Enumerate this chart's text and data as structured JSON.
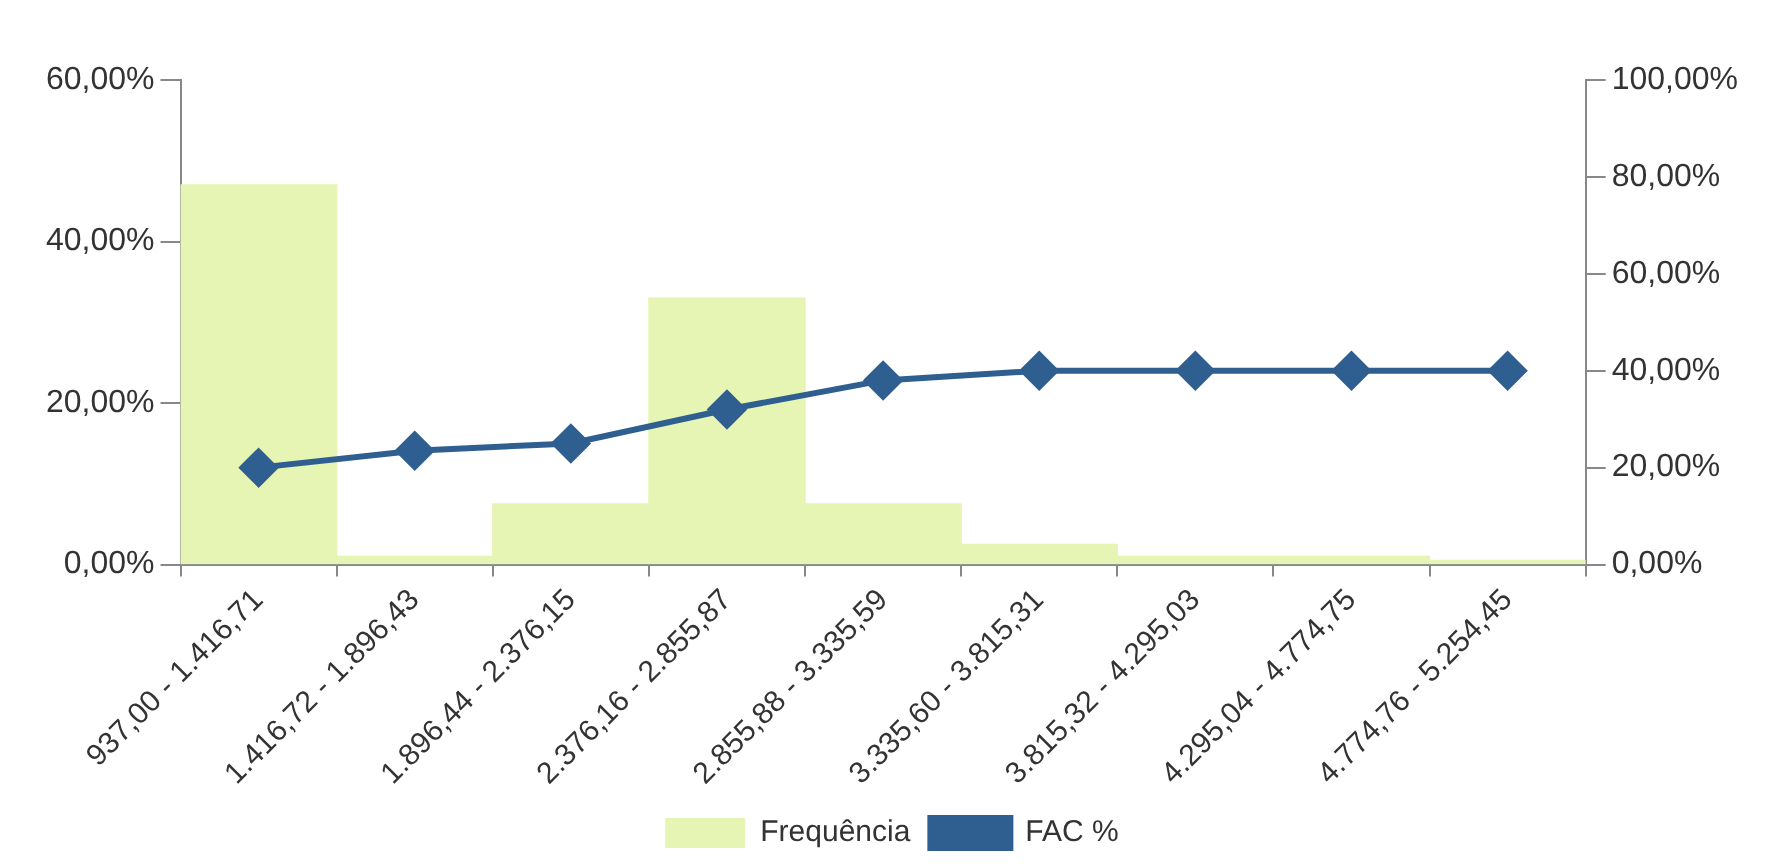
{
  "chart_data": {
    "type": "bar",
    "categories": [
      "937,00 - 1.416,71",
      "1.416,72 - 1.896,43",
      "1.896,44 - 2.376,15",
      "2.376,16 - 2.855,87",
      "2.855,88 - 3.335,59",
      "3.335,60 - 3.815,31",
      "3.815,32 - 4.295,03",
      "4.295,04 - 4.774,75",
      "4.774,76 - 5.254,45"
    ],
    "series": [
      {
        "name": "Frequência",
        "color": "#e6f4b4",
        "values": [
          47,
          1,
          7.5,
          33,
          7.5,
          2.5,
          1,
          1,
          0.5
        ]
      },
      {
        "name": "FAC %",
        "type": "line",
        "axis": "y2",
        "color": "#2f5f91",
        "marker": "diamond",
        "values": [
          20,
          23.5,
          25,
          32,
          38,
          40,
          40,
          40,
          40
        ]
      }
    ],
    "ylim": [
      0,
      60
    ],
    "yticks": [
      {
        "value": 0,
        "label": "0,00%"
      },
      {
        "value": 20,
        "label": "20,00%"
      },
      {
        "value": 40,
        "label": "40,00%"
      },
      {
        "value": 60,
        "label": "60,00%"
      }
    ],
    "y2lim": [
      0,
      100
    ],
    "y2ticks": [
      {
        "value": 0,
        "label": "0,00%"
      },
      {
        "value": 20,
        "label": "20,00%"
      },
      {
        "value": 40,
        "label": "40,00%"
      },
      {
        "value": 60,
        "label": "60,00%"
      },
      {
        "value": 80,
        "label": "80,00%"
      },
      {
        "value": 100,
        "label": "100,00%"
      }
    ],
    "grid": false,
    "legend": "bottom"
  }
}
